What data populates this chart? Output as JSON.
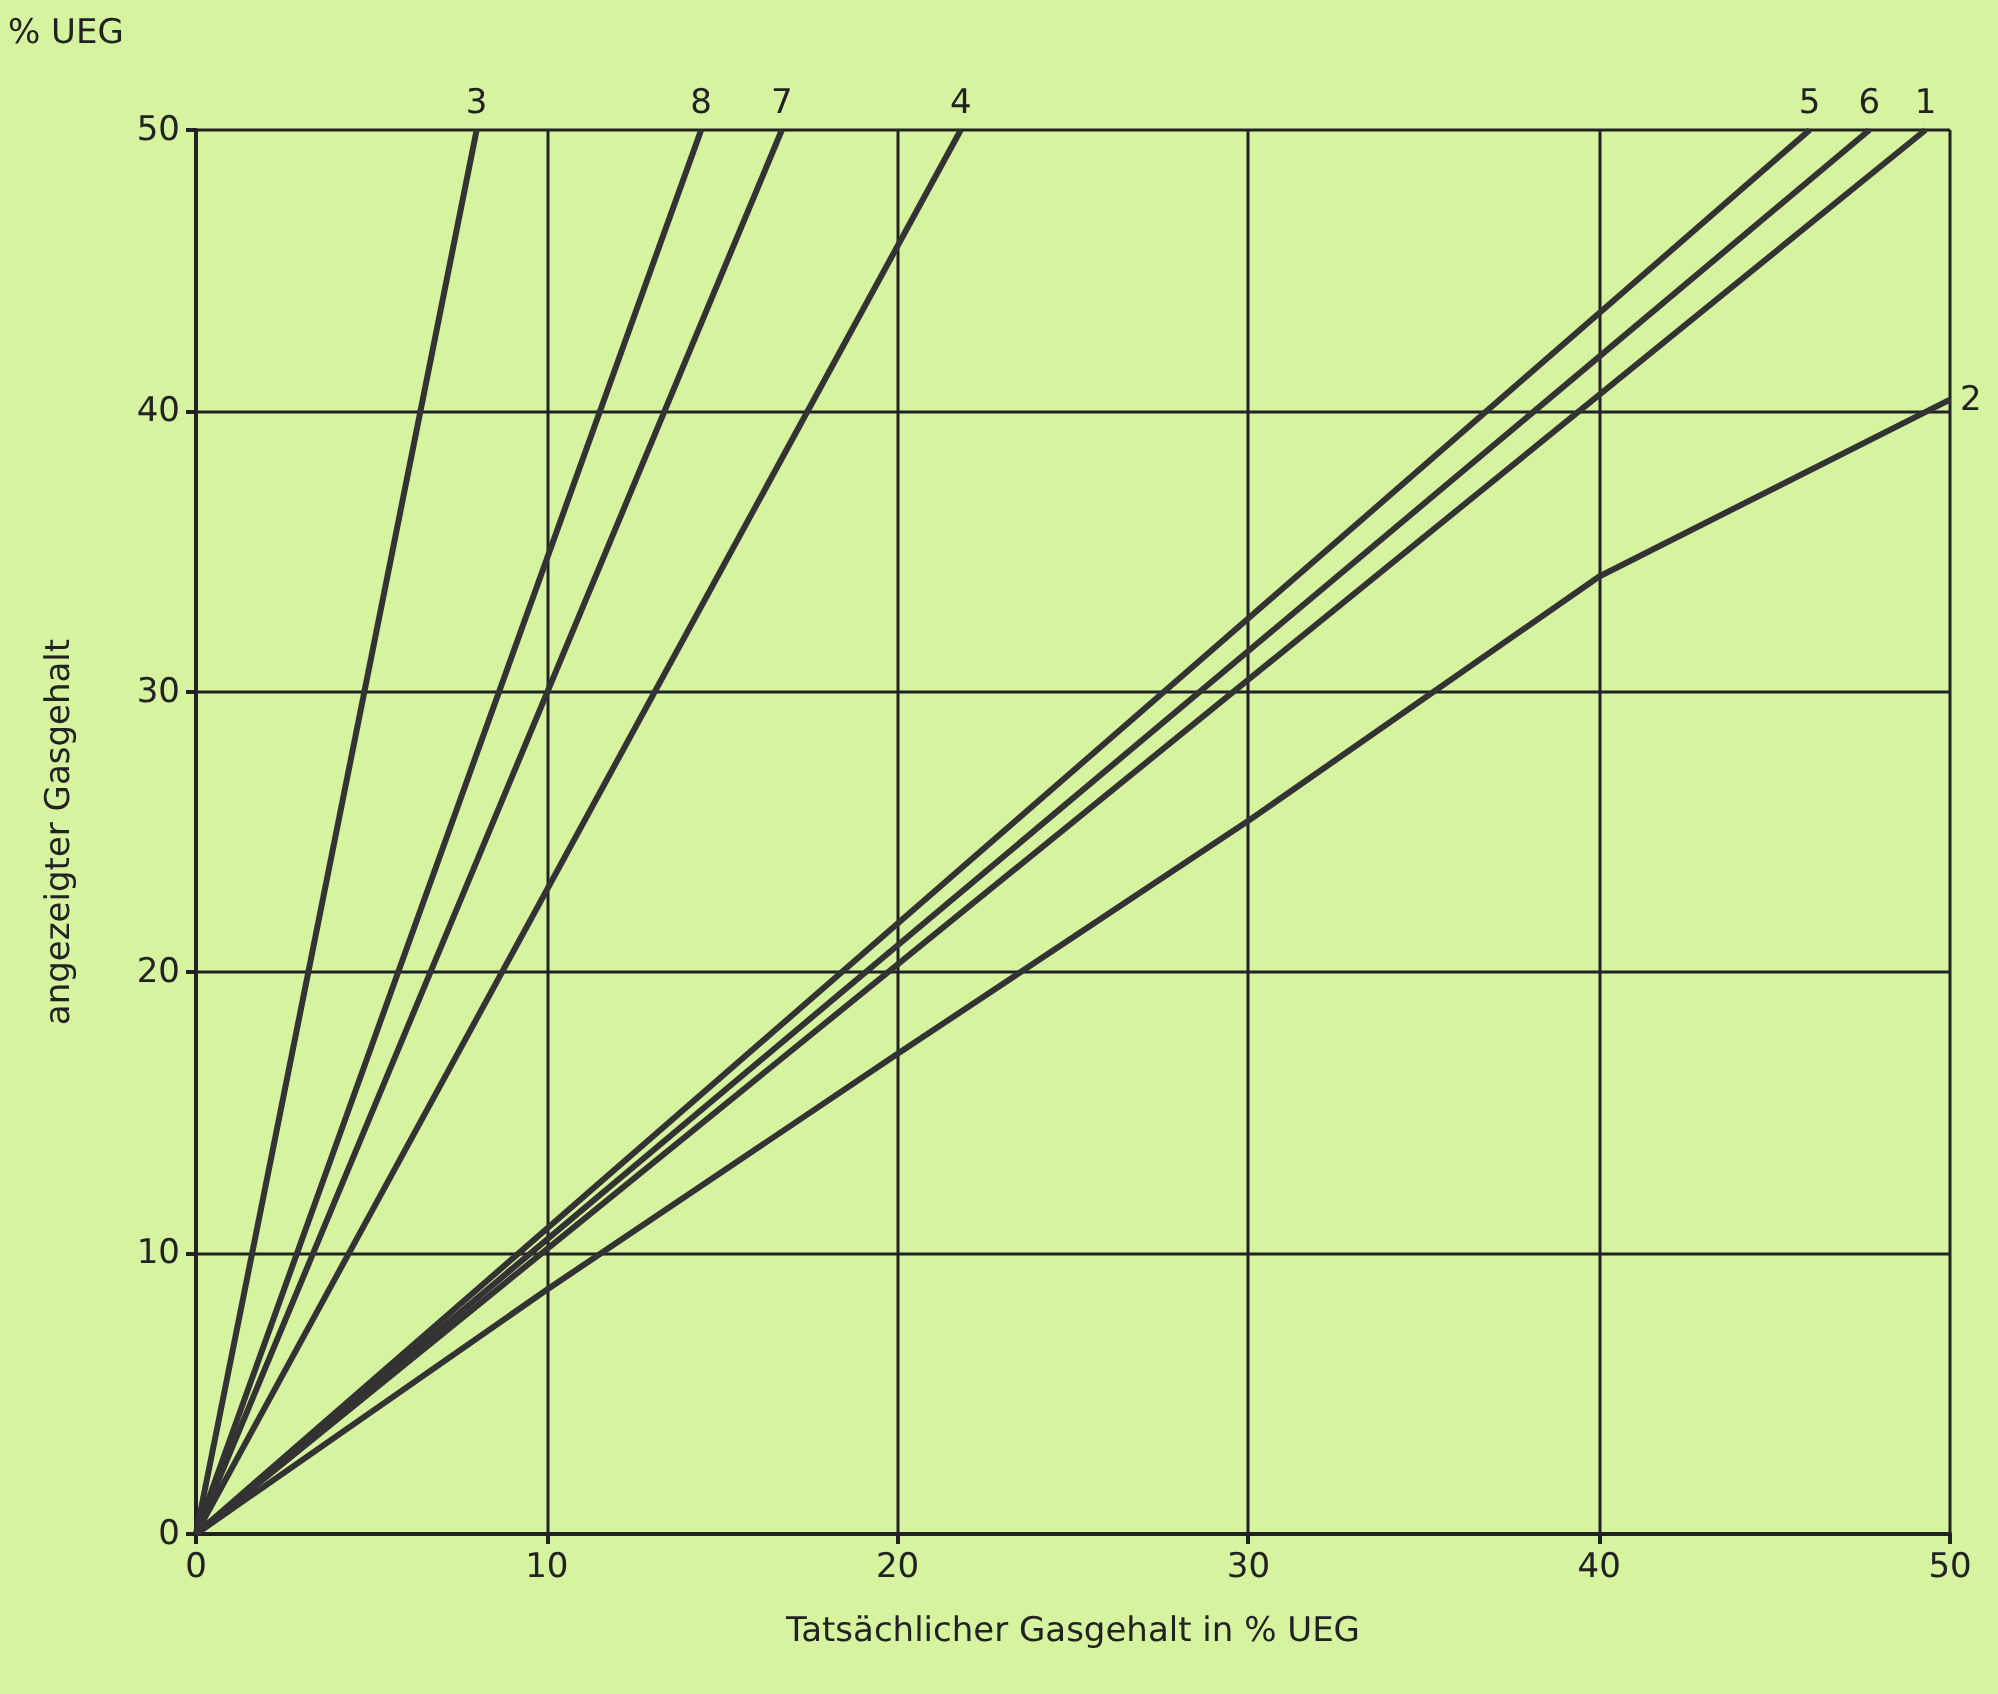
{
  "chart_data": {
    "type": "line",
    "xlabel": "Tatsächlicher Gasgehalt in % UEG",
    "ylabel": "angezeigter Gasgehalt",
    "annotations": [
      "% UEG"
    ],
    "xlim": [
      0,
      50
    ],
    "ylim": [
      0,
      50
    ],
    "xticks": [
      0,
      10,
      20,
      30,
      40,
      50
    ],
    "yticks": [
      0,
      10,
      20,
      30,
      40,
      50
    ],
    "grid": true,
    "legend": false,
    "marker": "none",
    "line_style": "solid",
    "series": [
      {
        "name": "3",
        "color": "#333333",
        "x": [
          0,
          8.0
        ],
        "values": [
          0,
          50
        ]
      },
      {
        "name": "8",
        "color": "#333333",
        "x": [
          0,
          14.4
        ],
        "values": [
          0,
          50
        ]
      },
      {
        "name": "7",
        "color": "#333333",
        "x": [
          0,
          16.7
        ],
        "values": [
          0,
          50
        ]
      },
      {
        "name": "4",
        "color": "#333333",
        "x": [
          0,
          21.8
        ],
        "values": [
          0,
          50
        ]
      },
      {
        "name": "5",
        "color": "#333333",
        "x": [
          0,
          46.0
        ],
        "values": [
          0,
          50
        ]
      },
      {
        "name": "6",
        "color": "#333333",
        "x": [
          0,
          47.7
        ],
        "values": [
          0,
          50
        ]
      },
      {
        "name": "1",
        "color": "#333333",
        "x": [
          0,
          49.3
        ],
        "values": [
          0,
          50
        ]
      },
      {
        "name": "2",
        "color": "#333333",
        "x": [
          0,
          10,
          20,
          30,
          40,
          50
        ],
        "values": [
          0,
          8.7,
          17.1,
          25.4,
          34.1,
          40.4
        ]
      }
    ]
  }
}
